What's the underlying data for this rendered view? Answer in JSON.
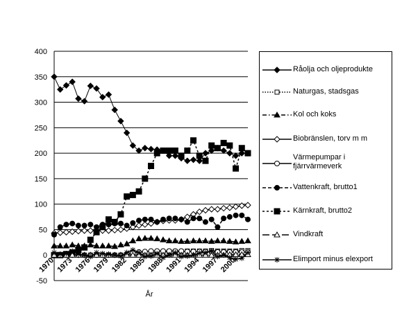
{
  "chart_data": {
    "type": "line",
    "x_label": "År",
    "x": [
      1970,
      1971,
      1972,
      1973,
      1974,
      1975,
      1976,
      1977,
      1978,
      1979,
      1980,
      1981,
      1982,
      1983,
      1984,
      1985,
      1986,
      1987,
      1988,
      1989,
      1990,
      1991,
      1992,
      1993,
      1994,
      1995,
      1996,
      1997,
      1998,
      1999,
      2000,
      2001,
      2002
    ],
    "xlim": [
      1970,
      2002
    ],
    "xticks": [
      1970,
      1973,
      1976,
      1979,
      1982,
      1985,
      1988,
      1991,
      1994,
      1997,
      2000
    ],
    "ylim": [
      -50,
      400
    ],
    "yticks": [
      -50,
      0,
      50,
      100,
      150,
      200,
      250,
      300,
      350,
      400
    ],
    "grid": true,
    "series": [
      {
        "name": "Råolja och oljeprodukte",
        "color": "#000000",
        "values": [
          350,
          325,
          333,
          340,
          307,
          302,
          332,
          327,
          310,
          315,
          285,
          263,
          240,
          215,
          205,
          210,
          208,
          207,
          205,
          195,
          195,
          190,
          185,
          187,
          185,
          200,
          205,
          210,
          205,
          200,
          195,
          200,
          200
        ]
      },
      {
        "name": "Naturgas, stadsgas",
        "color": "#000000",
        "values": [
          0,
          0,
          0,
          0,
          0,
          0,
          0,
          0,
          0,
          0,
          0,
          0,
          0,
          0,
          0,
          2,
          4,
          5,
          6,
          7,
          7,
          7,
          8,
          8,
          8,
          8,
          9,
          8,
          8,
          8,
          8,
          9,
          9
        ]
      },
      {
        "name": "Kol och koks",
        "color": "#000000",
        "values": [
          18,
          18,
          18,
          20,
          18,
          18,
          20,
          18,
          18,
          18,
          17,
          20,
          22,
          28,
          32,
          33,
          33,
          32,
          30,
          28,
          28,
          27,
          27,
          28,
          28,
          28,
          27,
          28,
          28,
          27,
          26,
          27,
          28
        ]
      },
      {
        "name": "Biobränslen, torv m m",
        "color": "#000000",
        "values": [
          43,
          44,
          45,
          46,
          47,
          48,
          48,
          48,
          48,
          48,
          49,
          50,
          52,
          55,
          58,
          60,
          62,
          65,
          67,
          68,
          68,
          70,
          75,
          80,
          85,
          88,
          90,
          90,
          92,
          93,
          95,
          97,
          98
        ]
      },
      {
        "name": "Värmepumpar i fjärrvärmeverk",
        "color": "#000000",
        "values": [
          0,
          0,
          0,
          0,
          0,
          0,
          0,
          0,
          0,
          0,
          0,
          0,
          2,
          4,
          6,
          7,
          8,
          8,
          8,
          8,
          8,
          8,
          7,
          7,
          7,
          7,
          6,
          6,
          6,
          6,
          6,
          6,
          6
        ]
      },
      {
        "name": "Vattenkraft, brutto1",
        "color": "#000000",
        "values": [
          40,
          55,
          60,
          62,
          58,
          58,
          60,
          55,
          60,
          60,
          62,
          62,
          58,
          63,
          68,
          70,
          70,
          65,
          70,
          72,
          72,
          70,
          65,
          72,
          72,
          65,
          70,
          55,
          72,
          75,
          78,
          78,
          70
        ]
      },
      {
        "name": "Kärnkraft, brutto2",
        "color": "#000000",
        "values": [
          0,
          0,
          2,
          5,
          10,
          15,
          30,
          45,
          55,
          70,
          65,
          80,
          115,
          118,
          125,
          150,
          175,
          200,
          205,
          205,
          205,
          195,
          205,
          225,
          195,
          185,
          215,
          210,
          220,
          215,
          170,
          210,
          200
        ]
      },
      {
        "name": "Vindkraft",
        "color": "#000000",
        "values": [
          0,
          0,
          0,
          0,
          0,
          0,
          0,
          0,
          0,
          0,
          0,
          0,
          0,
          0,
          0,
          0,
          0,
          0,
          0,
          0,
          0,
          0,
          0,
          0,
          0,
          0,
          0,
          0,
          0,
          1,
          1,
          1,
          1
        ]
      },
      {
        "name": "Elimport minus elexport",
        "color": "#000000",
        "values": [
          5,
          2,
          3,
          8,
          2,
          0,
          -3,
          5,
          3,
          2,
          0,
          -2,
          5,
          10,
          5,
          -3,
          -2,
          3,
          -5,
          0,
          5,
          -3,
          -2,
          0,
          4,
          5,
          8,
          -3,
          0,
          -5,
          -8,
          -6,
          5
        ]
      }
    ]
  }
}
